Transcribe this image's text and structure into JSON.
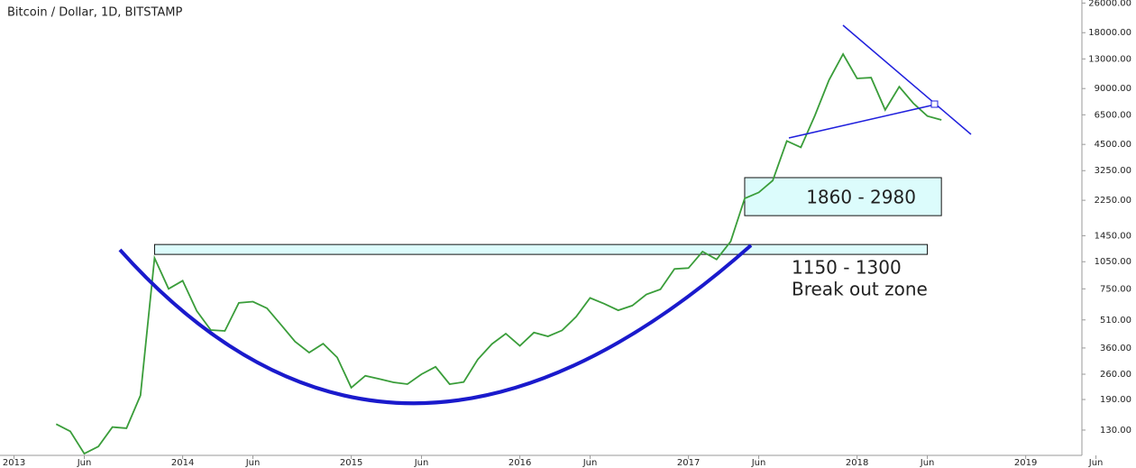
{
  "chart_data": {
    "type": "line",
    "title": "Bitcoin / Dollar, 1D, BITSTAMP",
    "log_scale": true,
    "color": "#3a9d3a",
    "x": [
      "2013-04",
      "2013-05",
      "2013-06",
      "2013-07",
      "2013-08",
      "2013-09",
      "2013-10",
      "2013-11",
      "2013-12",
      "2014-01",
      "2014-02",
      "2014-03",
      "2014-04",
      "2014-05",
      "2014-06",
      "2014-07",
      "2014-08",
      "2014-09",
      "2014-10",
      "2014-11",
      "2014-12",
      "2015-01",
      "2015-02",
      "2015-03",
      "2015-04",
      "2015-05",
      "2015-06",
      "2015-07",
      "2015-08",
      "2015-09",
      "2015-10",
      "2015-11",
      "2015-12",
      "2016-01",
      "2016-02",
      "2016-03",
      "2016-04",
      "2016-05",
      "2016-06",
      "2016-07",
      "2016-08",
      "2016-09",
      "2016-10",
      "2016-11",
      "2016-12",
      "2017-01",
      "2017-02",
      "2017-03",
      "2017-04",
      "2017-05",
      "2017-06",
      "2017-07",
      "2017-08",
      "2017-09",
      "2017-10",
      "2017-11",
      "2017-12",
      "2018-01",
      "2018-02",
      "2018-03",
      "2018-04",
      "2018-05",
      "2018-06",
      "2018-07"
    ],
    "values": [
      140,
      128,
      97,
      106,
      135,
      133,
      200,
      1100,
      750,
      830,
      570,
      450,
      445,
      630,
      640,
      590,
      480,
      390,
      340,
      380,
      320,
      220,
      255,
      245,
      235,
      230,
      260,
      285,
      230,
      236,
      312,
      378,
      430,
      370,
      436,
      416,
      448,
      530,
      670,
      624,
      575,
      609,
      700,
      745,
      960,
      970,
      1190,
      1080,
      1350,
      2300,
      2480,
      2875,
      4700,
      4340,
      6450,
      10000,
      13800,
      10200,
      10300,
      6900,
      9200,
      7500,
      6400,
      6100
    ],
    "xlim": [
      "2012-12",
      "2019-05"
    ],
    "xticks": [
      {
        "value": "2013-01",
        "label": "2013"
      },
      {
        "value": "2013-06",
        "label": "Jun"
      },
      {
        "value": "2014-01",
        "label": "2014"
      },
      {
        "value": "2014-06",
        "label": "Jun"
      },
      {
        "value": "2015-01",
        "label": "2015"
      },
      {
        "value": "2015-06",
        "label": "Jun"
      },
      {
        "value": "2016-01",
        "label": "2016"
      },
      {
        "value": "2016-06",
        "label": "Jun"
      },
      {
        "value": "2017-01",
        "label": "2017"
      },
      {
        "value": "2017-06",
        "label": "Jun"
      },
      {
        "value": "2018-01",
        "label": "2018"
      },
      {
        "value": "2018-06",
        "label": "Jun"
      },
      {
        "value": "2019-01",
        "label": "2019"
      },
      {
        "value": "2019-06",
        "label": "Jun"
      }
    ],
    "ylim": [
      95,
      27000
    ],
    "yticks": [
      {
        "value": 130,
        "label": "130.00"
      },
      {
        "value": 190,
        "label": "190.00"
      },
      {
        "value": 260,
        "label": "260.00"
      },
      {
        "value": 360,
        "label": "360.00"
      },
      {
        "value": 510,
        "label": "510.00"
      },
      {
        "value": 750,
        "label": "750.00"
      },
      {
        "value": 1050,
        "label": "1050.00"
      },
      {
        "value": 1450,
        "label": "1450.00"
      },
      {
        "value": 2250,
        "label": "2250.00"
      },
      {
        "value": 3250,
        "label": "3250.00"
      },
      {
        "value": 4500,
        "label": "4500.00"
      },
      {
        "value": 6500,
        "label": "6500.00"
      },
      {
        "value": 9000,
        "label": "9000.00"
      },
      {
        "value": 13000,
        "label": "13000.00"
      },
      {
        "value": 18000,
        "label": "18000.00"
      },
      {
        "value": 26000,
        "label": "26000.00"
      }
    ],
    "zones": [
      {
        "low": 1860,
        "high": 2980,
        "x": [
          "2017-05",
          "2018-07"
        ],
        "label": "1860 - 2980"
      },
      {
        "low": 1150,
        "high": 1300,
        "x": [
          "2013-11",
          "2018-06"
        ],
        "label": "1150 - 1300",
        "sublabel": "Break out zone"
      }
    ]
  }
}
